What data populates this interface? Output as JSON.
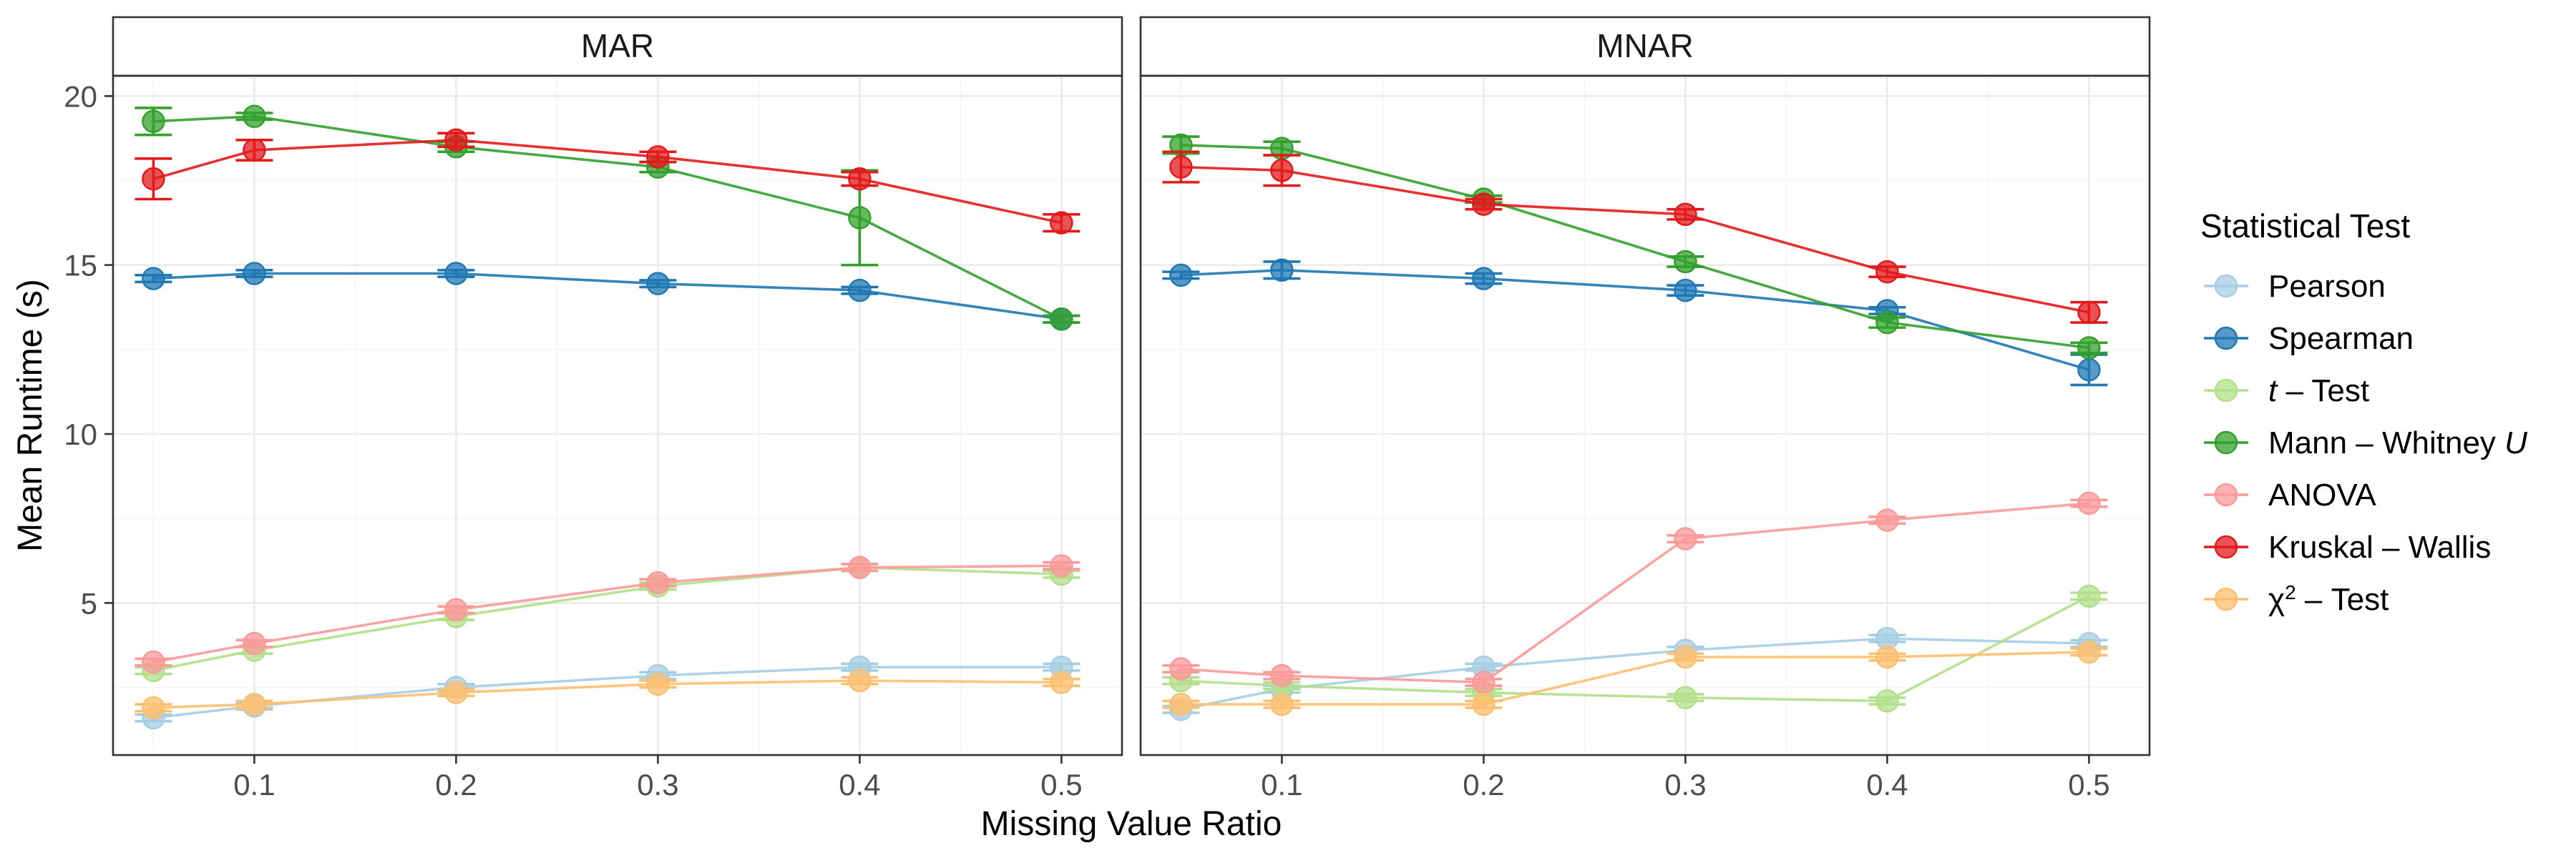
{
  "chart_data": {
    "type": "line",
    "xlabel": "Missing Value Ratio",
    "ylabel": "Mean Runtime (s)",
    "x": [
      0.05,
      0.1,
      0.2,
      0.3,
      0.4,
      0.5
    ],
    "x_ticks": [
      0.1,
      0.2,
      0.3,
      0.4,
      0.5
    ],
    "x_tick_labels": [
      "0.1",
      "0.2",
      "0.3",
      "0.4",
      "0.5"
    ],
    "xlim": [
      0.03,
      0.53
    ],
    "y_ticks": [
      5,
      10,
      15,
      20
    ],
    "y_tick_labels": [
      "5",
      "10",
      "15",
      "20"
    ],
    "ylim": [
      0.5,
      20.6
    ],
    "grid": true,
    "legend": {
      "title": "Statistical Test",
      "placement": "right",
      "entries": [
        {
          "key": "pearson",
          "parts": [
            {
              "t": "Pearson"
            }
          ]
        },
        {
          "key": "spearman",
          "parts": [
            {
              "t": "Spearman"
            }
          ]
        },
        {
          "key": "ttest",
          "parts": [
            {
              "t": "t",
              "style": "italic"
            },
            {
              "t": " – Test"
            }
          ]
        },
        {
          "key": "mwu",
          "parts": [
            {
              "t": "Mann – Whitney "
            },
            {
              "t": "U",
              "style": "italic"
            }
          ]
        },
        {
          "key": "anova",
          "parts": [
            {
              "t": "ANOVA"
            }
          ]
        },
        {
          "key": "kw",
          "parts": [
            {
              "t": "Kruskal – Wallis"
            }
          ]
        },
        {
          "key": "chi2",
          "parts": [
            {
              "t": "χ"
            },
            {
              "t": "2",
              "style": "sup"
            },
            {
              "t": " – Test"
            }
          ]
        }
      ]
    },
    "colors": {
      "pearson": "#a6cee3",
      "spearman": "#1f78b4",
      "ttest": "#b2df8a",
      "mwu": "#33a02c",
      "anova": "#fb9a99",
      "kw": "#e31a1c",
      "chi2": "#fdbf6f"
    },
    "panels": [
      {
        "name": "MAR",
        "series": [
          {
            "key": "pearson",
            "values": [
              1.6,
              1.95,
              2.5,
              2.85,
              3.1,
              3.1
            ],
            "errors": [
              0.1,
              0.1,
              0.1,
              0.1,
              0.1,
              0.1
            ]
          },
          {
            "key": "spearman",
            "values": [
              14.6,
              14.75,
              14.75,
              14.45,
              14.25,
              13.4
            ],
            "errors": [
              0.1,
              0.1,
              0.1,
              0.1,
              0.1,
              0.1
            ]
          },
          {
            "key": "ttest",
            "values": [
              3.0,
              3.6,
              4.6,
              5.5,
              6.05,
              5.85
            ],
            "errors": [
              0.1,
              0.1,
              0.1,
              0.1,
              0.1,
              0.1
            ]
          },
          {
            "key": "mwu",
            "values": [
              19.25,
              19.4,
              18.5,
              17.9,
              16.4,
              13.4
            ],
            "errors": [
              0.4,
              0.1,
              0.15,
              0.15,
              1.4,
              0.1
            ]
          },
          {
            "key": "anova",
            "values": [
              3.25,
              3.8,
              4.8,
              5.6,
              6.05,
              6.1
            ],
            "errors": [
              0.1,
              0.1,
              0.1,
              0.1,
              0.1,
              0.1
            ]
          },
          {
            "key": "kw",
            "values": [
              17.55,
              18.4,
              18.7,
              18.2,
              17.55,
              16.25
            ],
            "errors": [
              0.6,
              0.3,
              0.2,
              0.15,
              0.2,
              0.25
            ]
          },
          {
            "key": "chi2",
            "values": [
              1.9,
              2.0,
              2.35,
              2.6,
              2.7,
              2.65
            ],
            "errors": [
              0.1,
              0.1,
              0.1,
              0.1,
              0.1,
              0.1
            ]
          }
        ]
      },
      {
        "name": "MNAR",
        "series": [
          {
            "key": "pearson",
            "values": [
              1.85,
              2.45,
              3.1,
              3.6,
              3.95,
              3.8
            ],
            "errors": [
              0.1,
              0.1,
              0.1,
              0.1,
              0.1,
              0.1
            ]
          },
          {
            "key": "spearman",
            "values": [
              14.7,
              14.85,
              14.6,
              14.25,
              13.65,
              11.9
            ],
            "errors": [
              0.1,
              0.25,
              0.15,
              0.15,
              0.1,
              0.45
            ]
          },
          {
            "key": "ttest",
            "values": [
              2.7,
              2.55,
              2.35,
              2.2,
              2.1,
              5.2
            ],
            "errors": [
              0.1,
              0.1,
              0.1,
              0.1,
              0.1,
              0.1
            ]
          },
          {
            "key": "mwu",
            "values": [
              18.55,
              18.45,
              16.95,
              15.1,
              13.3,
              12.55
            ],
            "errors": [
              0.25,
              0.2,
              0.1,
              0.15,
              0.15,
              0.15
            ]
          },
          {
            "key": "anova",
            "values": [
              3.05,
              2.85,
              2.65,
              6.9,
              7.45,
              7.95
            ],
            "errors": [
              0.1,
              0.1,
              0.1,
              0.1,
              0.1,
              0.1
            ]
          },
          {
            "key": "kw",
            "values": [
              17.9,
              17.8,
              16.8,
              16.5,
              14.8,
              13.6
            ],
            "errors": [
              0.45,
              0.45,
              0.15,
              0.15,
              0.15,
              0.3
            ]
          },
          {
            "key": "chi2",
            "values": [
              2.0,
              2.0,
              2.0,
              3.4,
              3.4,
              3.55
            ],
            "errors": [
              0.1,
              0.1,
              0.1,
              0.1,
              0.1,
              0.1
            ]
          }
        ]
      }
    ]
  }
}
